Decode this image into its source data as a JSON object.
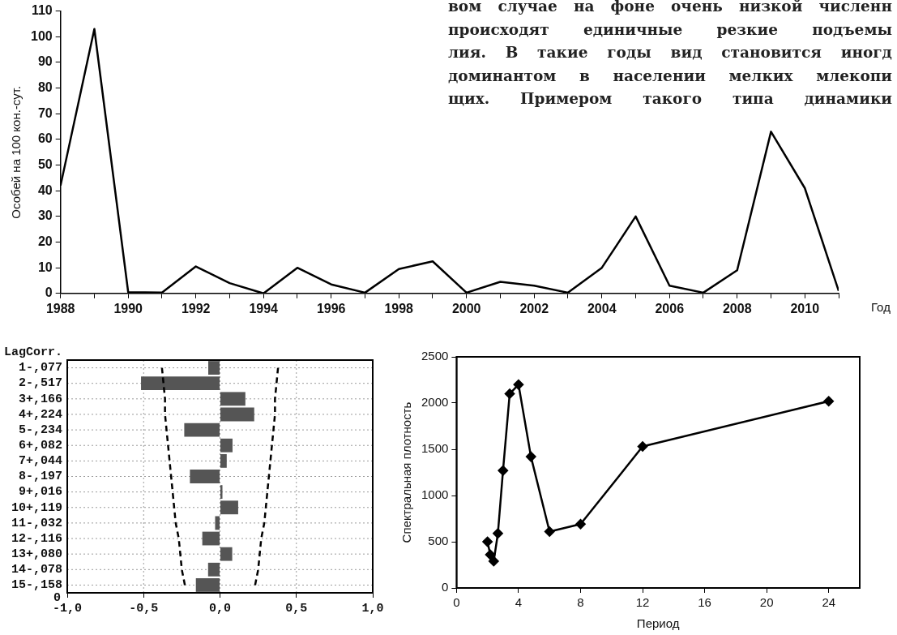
{
  "chart_data": [
    {
      "type": "line",
      "ylabel": "Особей на 100 кон.-сут.",
      "xlabel": "Год",
      "annotations": [
        "вом случае на фоне очень низкой численн",
        "происходят единичные резкие подъемы",
        "лия. В такие годы вид становится иногд",
        "доминантом в населении мелких млекопи",
        "щих. Примером такого типа динамики"
      ],
      "x": [
        1988,
        1989,
        1990,
        1991,
        1992,
        1993,
        1994,
        1995,
        1996,
        1997,
        1998,
        1999,
        2000,
        2001,
        2002,
        2003,
        2004,
        2005,
        2006,
        2007,
        2008,
        2009,
        2010,
        2011
      ],
      "series": [
        {
          "color": "#000000",
          "values": [
            42,
            103,
            0.5,
            0.3,
            10.5,
            4,
            0,
            10,
            3.5,
            0.3,
            9.5,
            12.5,
            0.3,
            4.5,
            3,
            0.3,
            10,
            30,
            3,
            0.3,
            9,
            63,
            41,
            1
          ]
        }
      ],
      "xlim": [
        1988,
        2011
      ],
      "xticks": [
        1988,
        {
          "value": 1989,
          "label": null
        },
        1990,
        {
          "value": 1991,
          "label": null
        },
        1992,
        {
          "value": 1993,
          "label": null
        },
        1994,
        {
          "value": 1995,
          "label": null
        },
        1996,
        {
          "value": 1997,
          "label": null
        },
        1998,
        {
          "value": 1999,
          "label": null
        },
        2000,
        {
          "value": 2001,
          "label": null
        },
        2002,
        {
          "value": 2003,
          "label": null
        },
        2004,
        {
          "value": 2005,
          "label": null
        },
        2006,
        {
          "value": 2007,
          "label": null
        },
        2008,
        {
          "value": 2009,
          "label": null
        },
        2010,
        {
          "value": 2011,
          "label": null
        }
      ],
      "ylim": [
        0,
        110
      ],
      "yticks": [
        0,
        10,
        20,
        30,
        40,
        50,
        60,
        70,
        80,
        90,
        100,
        110
      ],
      "grid": false,
      "legend": false
    },
    {
      "type": "bar",
      "orientation": "horizontal",
      "ylabel": "LagCorr.",
      "annotations": [
        "0"
      ],
      "categories": [
        "1-,077",
        "2-,517",
        "3+,166",
        "4+,224",
        "5-,234",
        "6+,082",
        "7+,044",
        "8-,197",
        "9+,016",
        "10+,119",
        "11-,032",
        "12-,116",
        "13+,080",
        "14-,078",
        "15-,158"
      ],
      "series": [
        {
          "color": "#555555",
          "values": [
            -0.077,
            -0.517,
            0.166,
            0.224,
            -0.234,
            0.082,
            0.044,
            -0.197,
            0.016,
            0.119,
            -0.032,
            -0.116,
            0.08,
            -0.078,
            -0.158
          ]
        },
        {
          "type": "line",
          "line_style": "dashed",
          "color": "#000000",
          "values": [
            -0.38,
            -0.37,
            -0.36,
            -0.36,
            -0.35,
            -0.34,
            -0.33,
            -0.32,
            -0.31,
            -0.3,
            -0.29,
            -0.27,
            -0.26,
            -0.25,
            -0.23
          ]
        },
        {
          "type": "line",
          "line_style": "dashed",
          "color": "#000000",
          "values": [
            0.38,
            0.37,
            0.36,
            0.36,
            0.35,
            0.34,
            0.33,
            0.32,
            0.31,
            0.3,
            0.29,
            0.27,
            0.26,
            0.25,
            0.23
          ]
        }
      ],
      "xlim": [
        -1,
        1
      ],
      "xticks": [
        {
          "value": -1,
          "label": "-1,0"
        },
        {
          "value": -0.5,
          "label": "-0,5"
        },
        {
          "value": 0,
          "label": "0,0"
        },
        {
          "value": 0.5,
          "label": "0,5"
        },
        {
          "value": 1,
          "label": "1,0"
        }
      ],
      "grid": true,
      "legend": false
    },
    {
      "type": "line",
      "xlabel": "Период",
      "ylabel": "Спектральная плотность",
      "marker": "diamond",
      "x": [
        2,
        2.18,
        2.4,
        2.67,
        3,
        3.43,
        4,
        4.8,
        6,
        8,
        12,
        24
      ],
      "series": [
        {
          "color": "#000000",
          "values": [
            500,
            360,
            290,
            590,
            1270,
            2100,
            2200,
            1420,
            610,
            690,
            1530,
            2020
          ]
        }
      ],
      "xlim": [
        0,
        26
      ],
      "xticks": [
        0,
        4,
        8,
        12,
        16,
        20,
        24
      ],
      "ylim": [
        0,
        2500
      ],
      "yticks": [
        0,
        500,
        1000,
        1500,
        2000,
        2500
      ],
      "grid": false,
      "legend": false
    }
  ]
}
